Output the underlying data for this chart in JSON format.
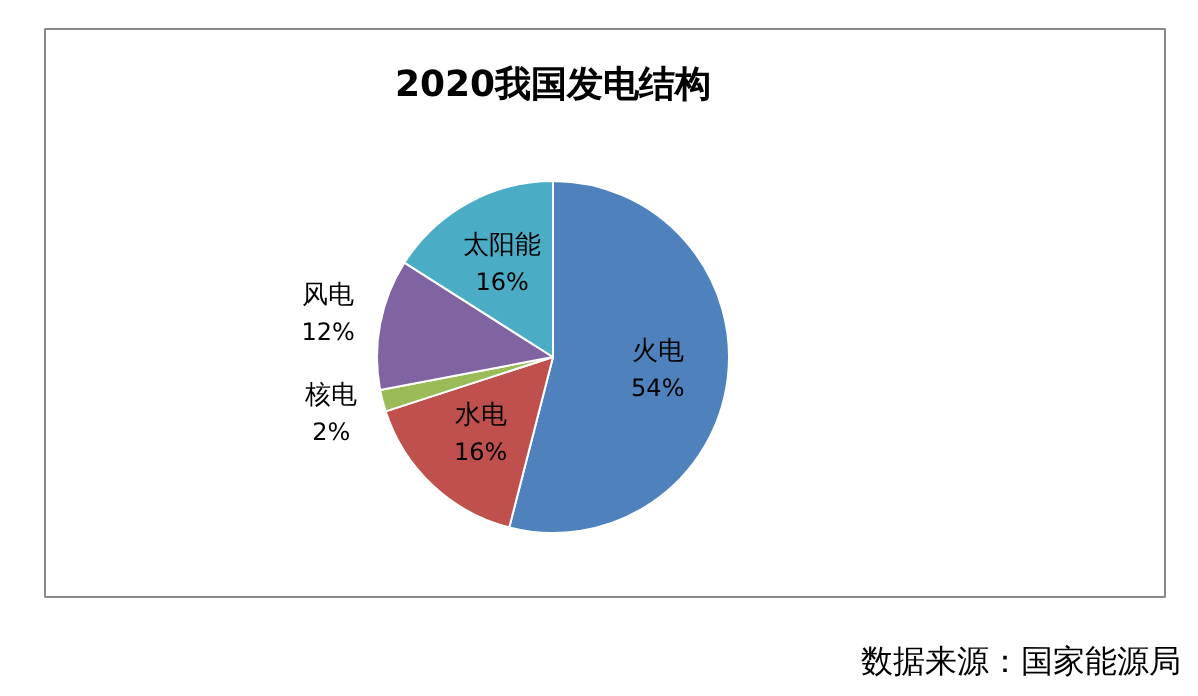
{
  "chart_data": {
    "type": "pie",
    "title": "2020我国发电结构",
    "categories": [
      "火电",
      "水电",
      "核电",
      "风电",
      "太阳能"
    ],
    "values": [
      54,
      16,
      2,
      12,
      16
    ],
    "colors": [
      "#4f81bd",
      "#c0504d",
      "#9bbb59",
      "#8064a2",
      "#4bacc6"
    ],
    "value_labels": [
      "54%",
      "16%",
      "2%",
      "12%",
      "16%"
    ],
    "annotations": [
      "数据来源：国家能源局"
    ]
  }
}
